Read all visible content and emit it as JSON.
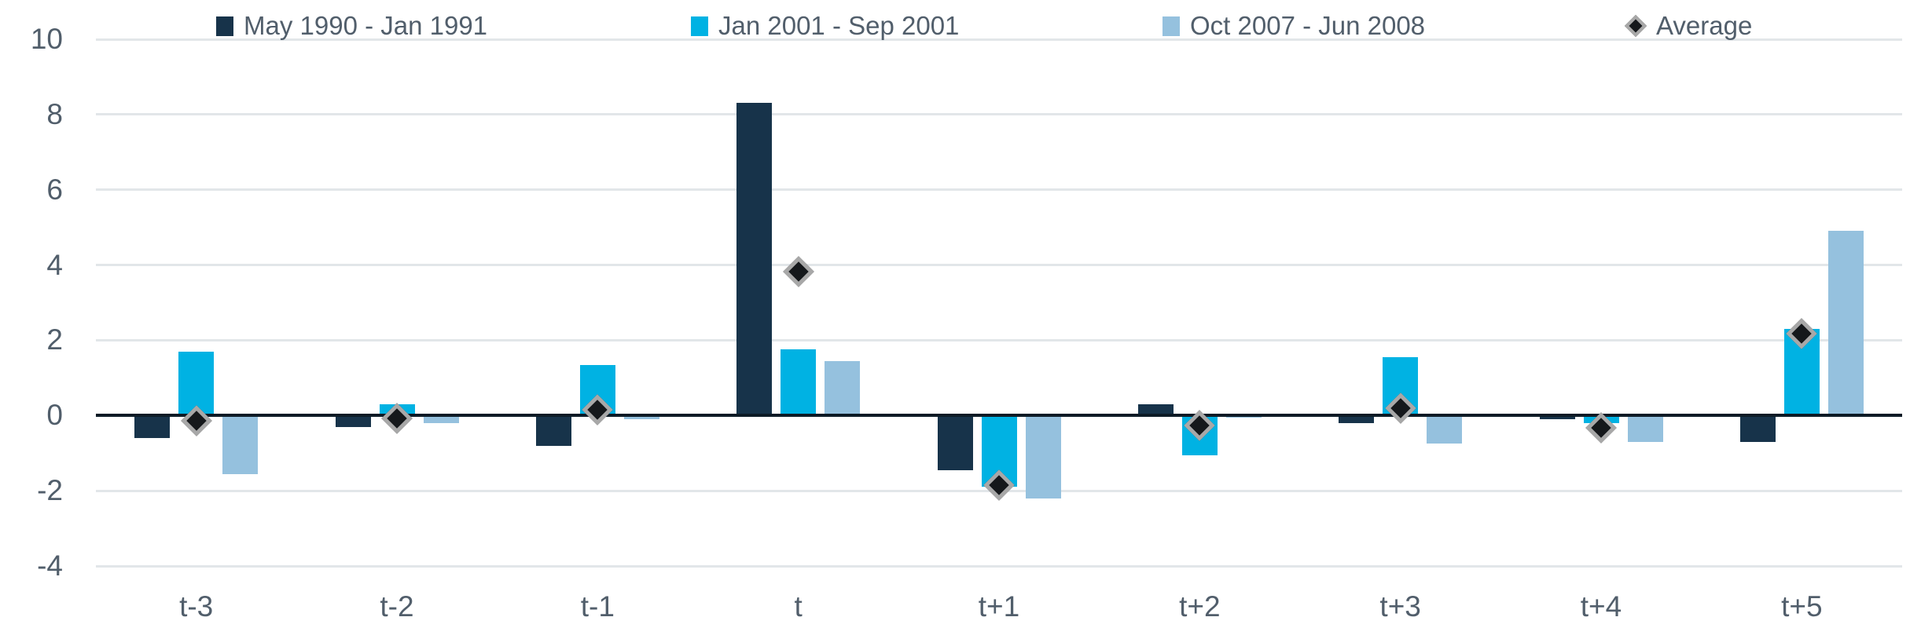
{
  "chart_data": {
    "type": "bar",
    "title": "",
    "xlabel": "",
    "ylabel": "",
    "categories": [
      "t-3",
      "t-2",
      "t-1",
      "t",
      "t+1",
      "t+2",
      "t+3",
      "t+4",
      "t+5"
    ],
    "series": [
      {
        "name": "May 1990 - Jan 1991",
        "color": "#17334a",
        "values": [
          -0.6,
          -0.3,
          -0.8,
          8.3,
          -1.45,
          0.3,
          -0.2,
          -0.1,
          -0.7
        ]
      },
      {
        "name": "Jan 2001 - Sep 2001",
        "color": "#00b2e3",
        "values": [
          1.7,
          0.3,
          1.35,
          1.75,
          -1.9,
          -1.05,
          1.55,
          -0.2,
          2.3
        ]
      },
      {
        "name": "Oct 2007 - Jun 2008",
        "color": "#95c1de",
        "values": [
          -1.55,
          -0.2,
          -0.1,
          1.45,
          -2.2,
          -0.05,
          -0.75,
          -0.7,
          4.9
        ]
      }
    ],
    "average": {
      "name": "Average",
      "marker": "diamond",
      "fill": "#15181b",
      "border": "#a8a8a8",
      "values": [
        -0.15,
        -0.07,
        0.15,
        3.83,
        -1.85,
        -0.27,
        0.2,
        -0.33,
        2.17
      ]
    },
    "yticks": [
      10,
      8,
      6,
      4,
      2,
      0,
      -2,
      -4
    ],
    "ylim": [
      -4,
      10
    ],
    "grid": true,
    "legend_position": "top"
  },
  "colors": {
    "grid": "#e2e6e9",
    "zero_line": "#0d1b26",
    "axis_text": "#515e6b",
    "background": "#ffffff"
  }
}
